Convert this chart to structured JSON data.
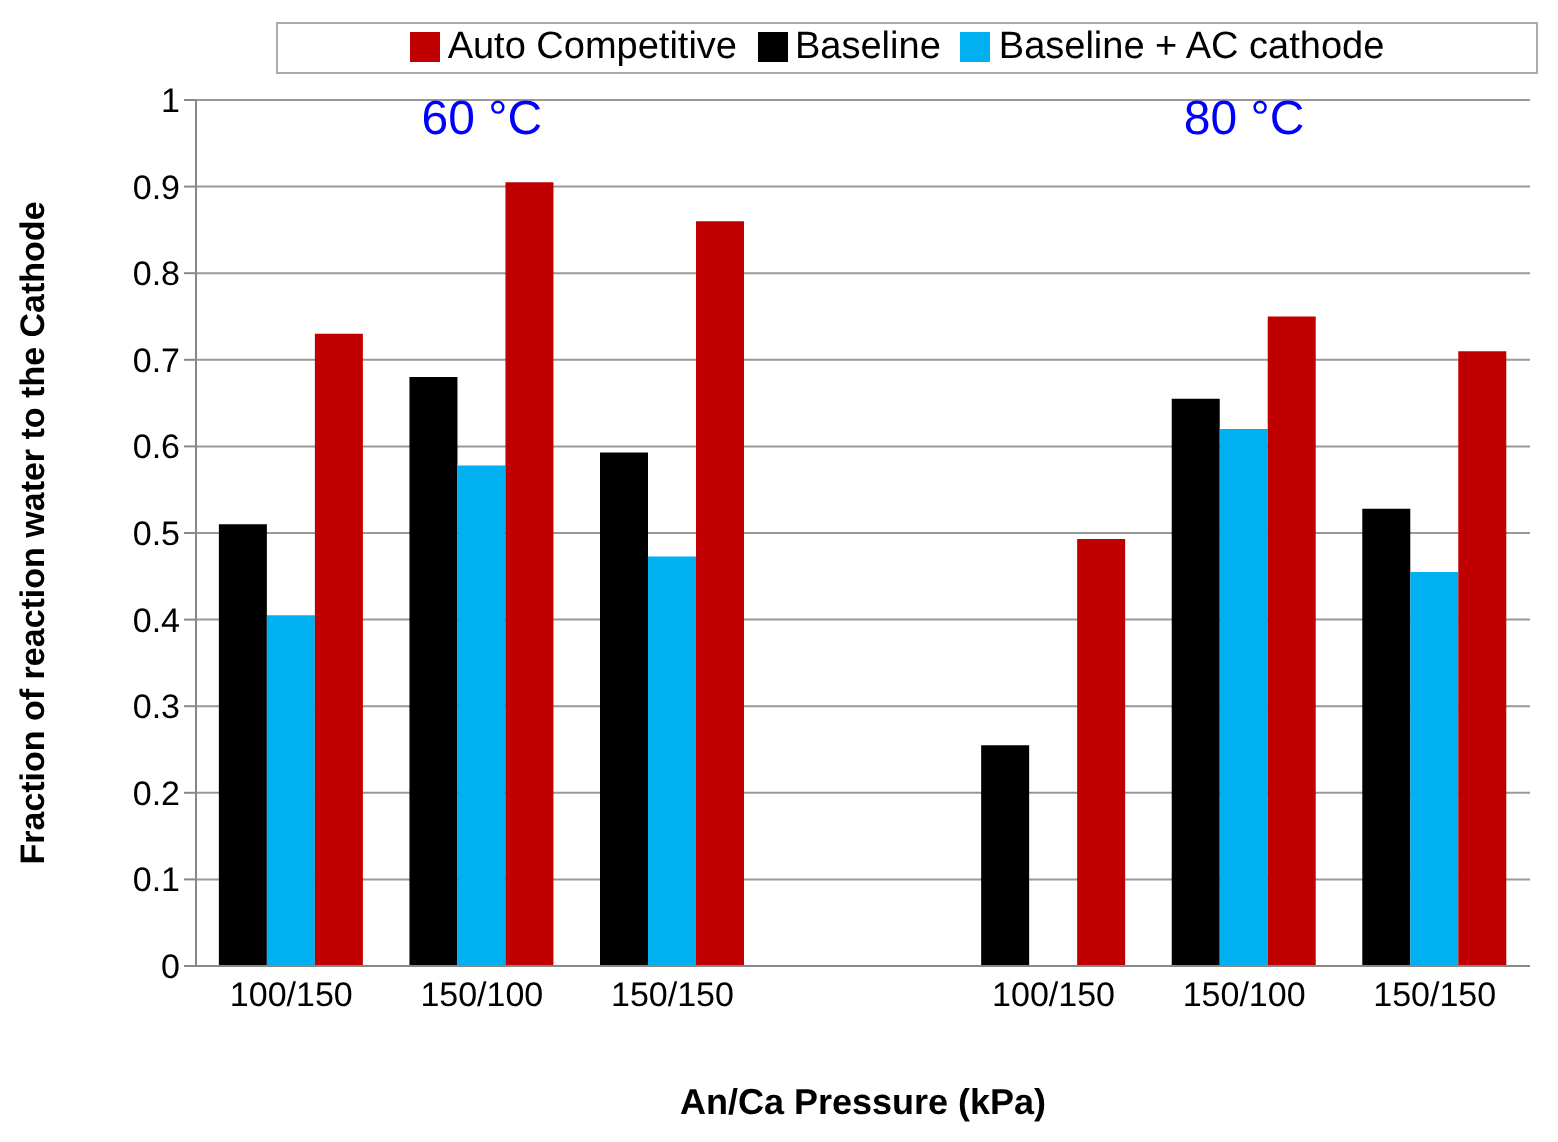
{
  "chart_data": {
    "type": "bar",
    "xlabel": "An/Ca Pressure (kPa)",
    "ylabel": "Fraction of reaction water to the Cathode",
    "categories": [
      "100/150",
      "150/100",
      "150/150",
      null,
      "100/150",
      "150/100",
      "150/150"
    ],
    "series": [
      {
        "name": "Baseline",
        "color": "#000000",
        "values": [
          0.51,
          0.68,
          0.593,
          null,
          0.255,
          0.655,
          0.528
        ]
      },
      {
        "name": "Baseline + AC cathode",
        "color": "#00b0f0",
        "values": [
          0.405,
          0.578,
          0.473,
          null,
          null,
          0.62,
          0.455
        ]
      },
      {
        "name": "Auto Competitive",
        "color": "#c00000",
        "values": [
          0.73,
          0.905,
          0.86,
          null,
          0.493,
          0.75,
          0.71
        ]
      }
    ],
    "annotations": [
      "60 °C",
      "80 °C"
    ],
    "ylim": [
      0,
      1
    ],
    "yticks": [
      0,
      0.1,
      0.2,
      0.3,
      0.4,
      0.5,
      0.6,
      0.7,
      0.8,
      0.9,
      1
    ],
    "grid": "y",
    "legend": "top"
  }
}
